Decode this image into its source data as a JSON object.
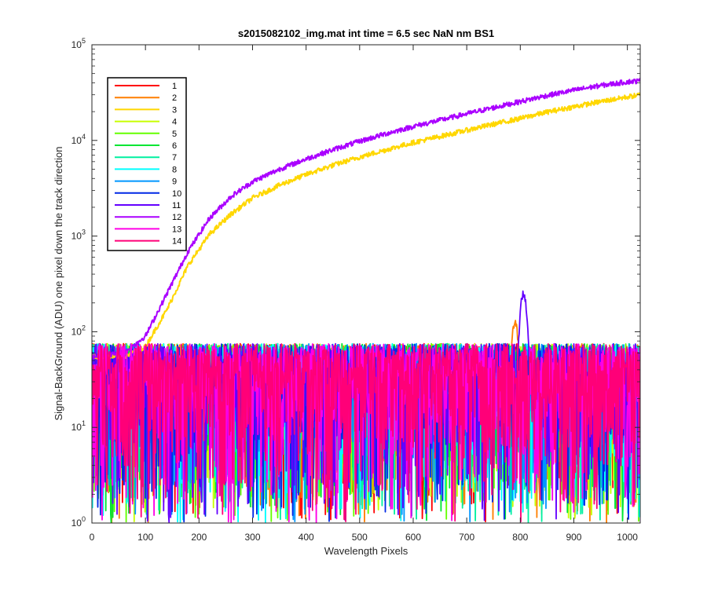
{
  "chart_data": {
    "type": "line",
    "title": "s2015082102_img.mat int time = 6.5 sec  NaN nm BS1",
    "xlabel": "Wavelength Pixels",
    "ylabel": "Signal-BackGround (ADU) one pixel down the track direction",
    "xlim": [
      0,
      1024
    ],
    "ylim": [
      1,
      100000
    ],
    "yscale": "log",
    "grid": false,
    "legend_position": "top-left",
    "x_ticks": [
      "0",
      "100",
      "200",
      "300",
      "400",
      "500",
      "600",
      "700",
      "800",
      "900",
      "1000"
    ],
    "y_ticks": [
      {
        "base": "10",
        "exp": "0"
      },
      {
        "base": "10",
        "exp": "1"
      },
      {
        "base": "10",
        "exp": "2"
      },
      {
        "base": "10",
        "exp": "3"
      },
      {
        "base": "10",
        "exp": "4"
      },
      {
        "base": "10",
        "exp": "5"
      }
    ],
    "series": [
      {
        "name": "1",
        "color": "#ff0000",
        "kind": "noise"
      },
      {
        "name": "2",
        "color": "#ff7f00",
        "kind": "noise",
        "peak": {
          "x": 790,
          "y": 130
        }
      },
      {
        "name": "3",
        "color": "#ffd700",
        "kind": "rising",
        "x": [
          0,
          60,
          100,
          140,
          180,
          220,
          260,
          300,
          350,
          400,
          450,
          500,
          550,
          600,
          650,
          700,
          750,
          800,
          850,
          900,
          950,
          1000,
          1024
        ],
        "y": [
          55,
          55,
          70,
          170,
          500,
          1050,
          1700,
          2500,
          3400,
          4400,
          5500,
          6700,
          8000,
          9500,
          11000,
          12800,
          14800,
          17000,
          19800,
          22500,
          25500,
          28500,
          30000
        ]
      },
      {
        "name": "4",
        "color": "#c8ff00",
        "kind": "noise"
      },
      {
        "name": "5",
        "color": "#64ff00",
        "kind": "noise"
      },
      {
        "name": "6",
        "color": "#00e632",
        "kind": "noise"
      },
      {
        "name": "7",
        "color": "#00f0a0",
        "kind": "noise"
      },
      {
        "name": "8",
        "color": "#00ffff",
        "kind": "noise"
      },
      {
        "name": "9",
        "color": "#0096ff",
        "kind": "noise"
      },
      {
        "name": "10",
        "color": "#0028e6",
        "kind": "noise"
      },
      {
        "name": "11",
        "color": "#6400ff",
        "kind": "noise",
        "peak": {
          "x": 806,
          "y": 270
        }
      },
      {
        "name": "12",
        "color": "#aa00ff",
        "kind": "rising",
        "x": [
          0,
          60,
          100,
          140,
          180,
          220,
          260,
          300,
          350,
          400,
          450,
          500,
          550,
          600,
          650,
          700,
          750,
          800,
          850,
          900,
          950,
          1000,
          1024
        ],
        "y": [
          55,
          60,
          90,
          250,
          700,
          1550,
          2600,
          3700,
          5000,
          6400,
          8000,
          9800,
          11800,
          14000,
          16300,
          19000,
          22000,
          25500,
          29500,
          33500,
          37500,
          41000,
          42000
        ]
      },
      {
        "name": "13",
        "color": "#ff00e6",
        "kind": "noise"
      },
      {
        "name": "14",
        "color": "#ff0078",
        "kind": "noise"
      }
    ]
  }
}
